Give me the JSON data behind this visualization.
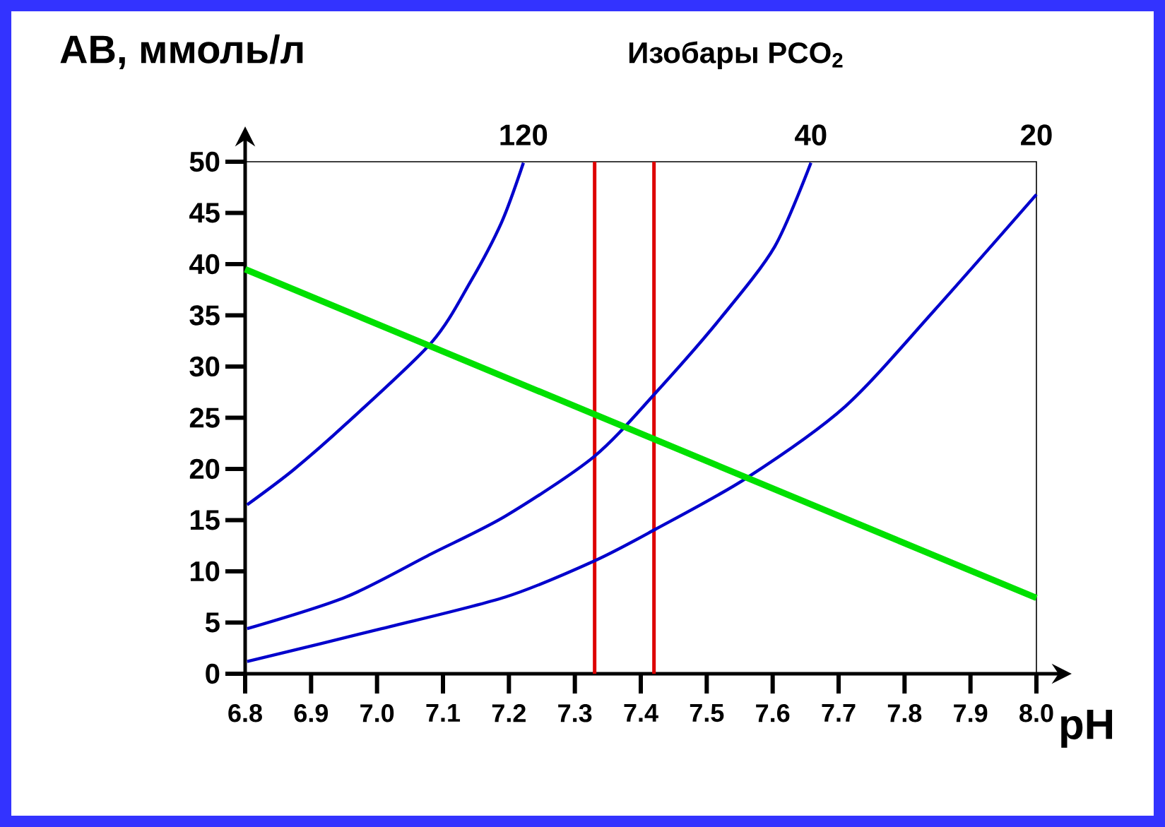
{
  "chart_data": {
    "type": "line",
    "xlabel": "pH",
    "ylabel": "AB, ммоль/л",
    "legend_title": "Изобары PCO$_{2}$",
    "xlim": [
      6.8,
      8.0
    ],
    "xticks": [
      {
        "value": 6.8,
        "label": "6.8"
      },
      {
        "value": 6.9,
        "label": "6.9"
      },
      {
        "value": 7.0,
        "label": "7.0"
      },
      {
        "value": 7.1,
        "label": "7.1"
      },
      {
        "value": 7.2,
        "label": "7.2"
      },
      {
        "value": 7.3,
        "label": "7.3"
      },
      {
        "value": 7.4,
        "label": "7.4"
      },
      {
        "value": 7.5,
        "label": "7.5"
      },
      {
        "value": 7.6,
        "label": "7.6"
      },
      {
        "value": 7.7,
        "label": "7.7"
      },
      {
        "value": 7.8,
        "label": "7.8"
      },
      {
        "value": 7.9,
        "label": "7.9"
      },
      {
        "value": 8.0,
        "label": "8.0"
      }
    ],
    "ylim": [
      0,
      50
    ],
    "yticks": [
      0,
      5,
      10,
      15,
      20,
      25,
      30,
      35,
      40,
      45,
      50
    ],
    "series": [
      {
        "name": "120",
        "color": "#0000cc",
        "x": [
          6.803,
          6.873,
          6.953,
          7.082,
          7.141,
          7.189,
          7.222
        ],
        "values": [
          16.5,
          19.9,
          24.4,
          32.3,
          38.2,
          44.1,
          49.9
        ]
      },
      {
        "name": "40",
        "color": "#0000cc",
        "x": [
          6.803,
          6.953,
          7.082,
          7.195,
          7.329,
          7.422,
          7.522,
          7.603,
          7.658
        ],
        "values": [
          4.4,
          7.5,
          11.7,
          15.4,
          21.2,
          27.4,
          34.8,
          41.7,
          49.9
        ]
      },
      {
        "name": "20",
        "color": "#0000cc",
        "x": [
          6.803,
          7.007,
          7.195,
          7.329,
          7.422,
          7.56,
          7.71,
          7.844,
          8.0
        ],
        "values": [
          1.2,
          4.4,
          7.5,
          11.0,
          14.1,
          19.1,
          26.1,
          35.4,
          46.8
        ]
      },
      {
        "color": "#00e000",
        "x": [
          6.8,
          8.0
        ],
        "values": [
          39.5,
          7.4
        ]
      }
    ],
    "ref_lines": [
      {
        "axis": "x",
        "value": 7.33,
        "color": "#dd0000"
      },
      {
        "axis": "x",
        "value": 7.42,
        "color": "#dd0000"
      }
    ],
    "grid": false,
    "marker": "none",
    "line_style": "solid"
  }
}
